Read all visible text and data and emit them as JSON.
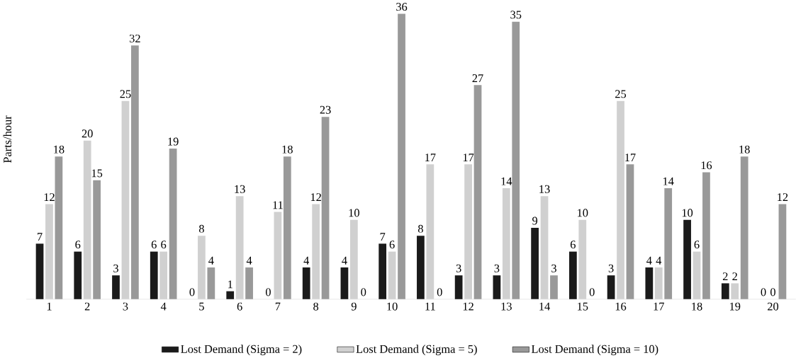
{
  "chart_data": {
    "type": "bar",
    "ylabel": "Parts/hour",
    "categories": [
      "1",
      "2",
      "3",
      "4",
      "5",
      "6",
      "7",
      "8",
      "9",
      "10",
      "11",
      "12",
      "13",
      "14",
      "15",
      "16",
      "17",
      "18",
      "19",
      "20"
    ],
    "series": [
      {
        "name": "Lost Demand (Sigma = 2)",
        "color": "#1a1a1a",
        "values": [
          7,
          6,
          3,
          6,
          0,
          1,
          0,
          4,
          4,
          7,
          8,
          3,
          3,
          9,
          6,
          3,
          4,
          10,
          2,
          0
        ]
      },
      {
        "name": "Lost Demand (Sigma = 5)",
        "color": "#d0d0d0",
        "values": [
          12,
          20,
          25,
          6,
          8,
          13,
          11,
          12,
          10,
          6,
          17,
          17,
          14,
          13,
          10,
          25,
          4,
          6,
          2,
          0
        ]
      },
      {
        "name": "Lost Demand (Sigma = 10)",
        "color": "#999999",
        "values": [
          18,
          15,
          32,
          19,
          4,
          4,
          18,
          23,
          0,
          36,
          0,
          27,
          35,
          3,
          0,
          17,
          14,
          16,
          18,
          12
        ]
      }
    ],
    "data_labels": true,
    "legend": "bottom"
  }
}
